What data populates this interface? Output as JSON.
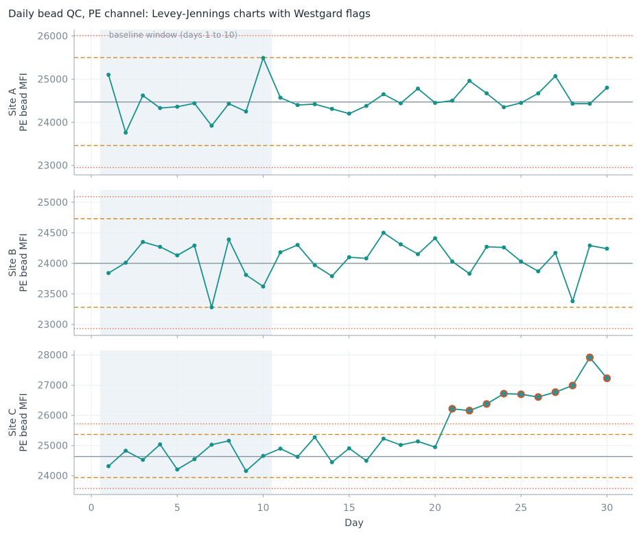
{
  "figure": {
    "title": "Daily bead QC, PE channel: Levey-Jennings charts with Westgard flags",
    "xlabel": "Day",
    "baseline_annotation": "baseline window (days 1 to 10)"
  },
  "colors": {
    "series": "#16918a",
    "mean": "#8593a3",
    "sd2": "#d08a27",
    "sd3": "#cf6f55",
    "baseline_shade": "#eef3f8",
    "flag_fill": "#2e8f9a",
    "flag_edge": "#c9582b",
    "grid": "#eceff2",
    "axis": "#9aa4ae"
  },
  "chart_data": [
    {
      "type": "line",
      "panel": "Site A",
      "ylabel": [
        "Site A",
        "PE bead MFI"
      ],
      "x": [
        1,
        2,
        3,
        4,
        5,
        6,
        7,
        8,
        9,
        10,
        11,
        12,
        13,
        14,
        15,
        16,
        17,
        18,
        19,
        20,
        21,
        22,
        23,
        24,
        25,
        26,
        27,
        28,
        29,
        30
      ],
      "values": [
        25100,
        23760,
        24620,
        24330,
        24360,
        24440,
        23920,
        24430,
        24250,
        25490,
        24570,
        24400,
        24420,
        24310,
        24200,
        24380,
        24650,
        24440,
        24780,
        24450,
        24500,
        24960,
        24670,
        24350,
        24450,
        24670,
        25070,
        24430,
        24430,
        24800
      ],
      "mean": 24470,
      "sd2_lines": [
        23460,
        25500
      ],
      "sd3_lines": [
        22950,
        26010
      ],
      "flagged_days": [],
      "xlim": [
        -1,
        31.5
      ],
      "ylim": [
        22780,
        26150
      ],
      "yticks": [
        23000,
        24000,
        25000,
        26000
      ],
      "baseline_window": [
        0.5,
        10.5
      ],
      "grid": true
    },
    {
      "type": "line",
      "panel": "Site B",
      "ylabel": [
        "Site B",
        "PE bead MFI"
      ],
      "x": [
        1,
        2,
        3,
        4,
        5,
        6,
        7,
        8,
        9,
        10,
        11,
        12,
        13,
        14,
        15,
        16,
        17,
        18,
        19,
        20,
        21,
        22,
        23,
        24,
        25,
        26,
        27,
        28,
        29,
        30
      ],
      "values": [
        23840,
        24010,
        24350,
        24270,
        24130,
        24290,
        23280,
        24390,
        23810,
        23620,
        24180,
        24300,
        23970,
        23790,
        24100,
        24080,
        24500,
        24310,
        24150,
        24410,
        24030,
        23830,
        24270,
        24260,
        24030,
        23870,
        24170,
        23380,
        24290,
        24240
      ],
      "mean": 24000,
      "sd2_lines": [
        23280,
        24730
      ],
      "sd3_lines": [
        22930,
        25090
      ],
      "flagged_days": [],
      "xlim": [
        -1,
        31.5
      ],
      "ylim": [
        22820,
        25200
      ],
      "yticks": [
        23000,
        23500,
        24000,
        24500,
        25000
      ],
      "baseline_window": [
        0.5,
        10.5
      ],
      "grid": true
    },
    {
      "type": "line",
      "panel": "Site C",
      "ylabel": [
        "Site C",
        "PE bead MFI"
      ],
      "x": [
        1,
        2,
        3,
        4,
        5,
        6,
        7,
        8,
        9,
        10,
        11,
        12,
        13,
        14,
        15,
        16,
        17,
        18,
        19,
        20,
        21,
        22,
        23,
        24,
        25,
        26,
        27,
        28,
        29,
        30
      ],
      "values": [
        24320,
        24830,
        24530,
        25040,
        24210,
        24550,
        25030,
        25160,
        24160,
        24660,
        24900,
        24630,
        25280,
        24450,
        24910,
        24500,
        25230,
        25020,
        25140,
        24950,
        26220,
        26160,
        26380,
        26720,
        26700,
        26610,
        26770,
        26990,
        27920,
        27230
      ],
      "mean": 24640,
      "sd2_lines": [
        23940,
        25370
      ],
      "sd3_lines": [
        23580,
        25720
      ],
      "flagged_days": [
        21,
        22,
        23,
        24,
        25,
        26,
        27,
        28,
        29,
        30
      ],
      "xlim": [
        -1,
        31.5
      ],
      "ylim": [
        23380,
        28150
      ],
      "yticks": [
        24000,
        25000,
        26000,
        27000,
        28000
      ],
      "xticks": [
        0,
        5,
        10,
        15,
        20,
        25,
        30
      ],
      "baseline_window": [
        0.5,
        10.5
      ],
      "grid": true
    }
  ]
}
